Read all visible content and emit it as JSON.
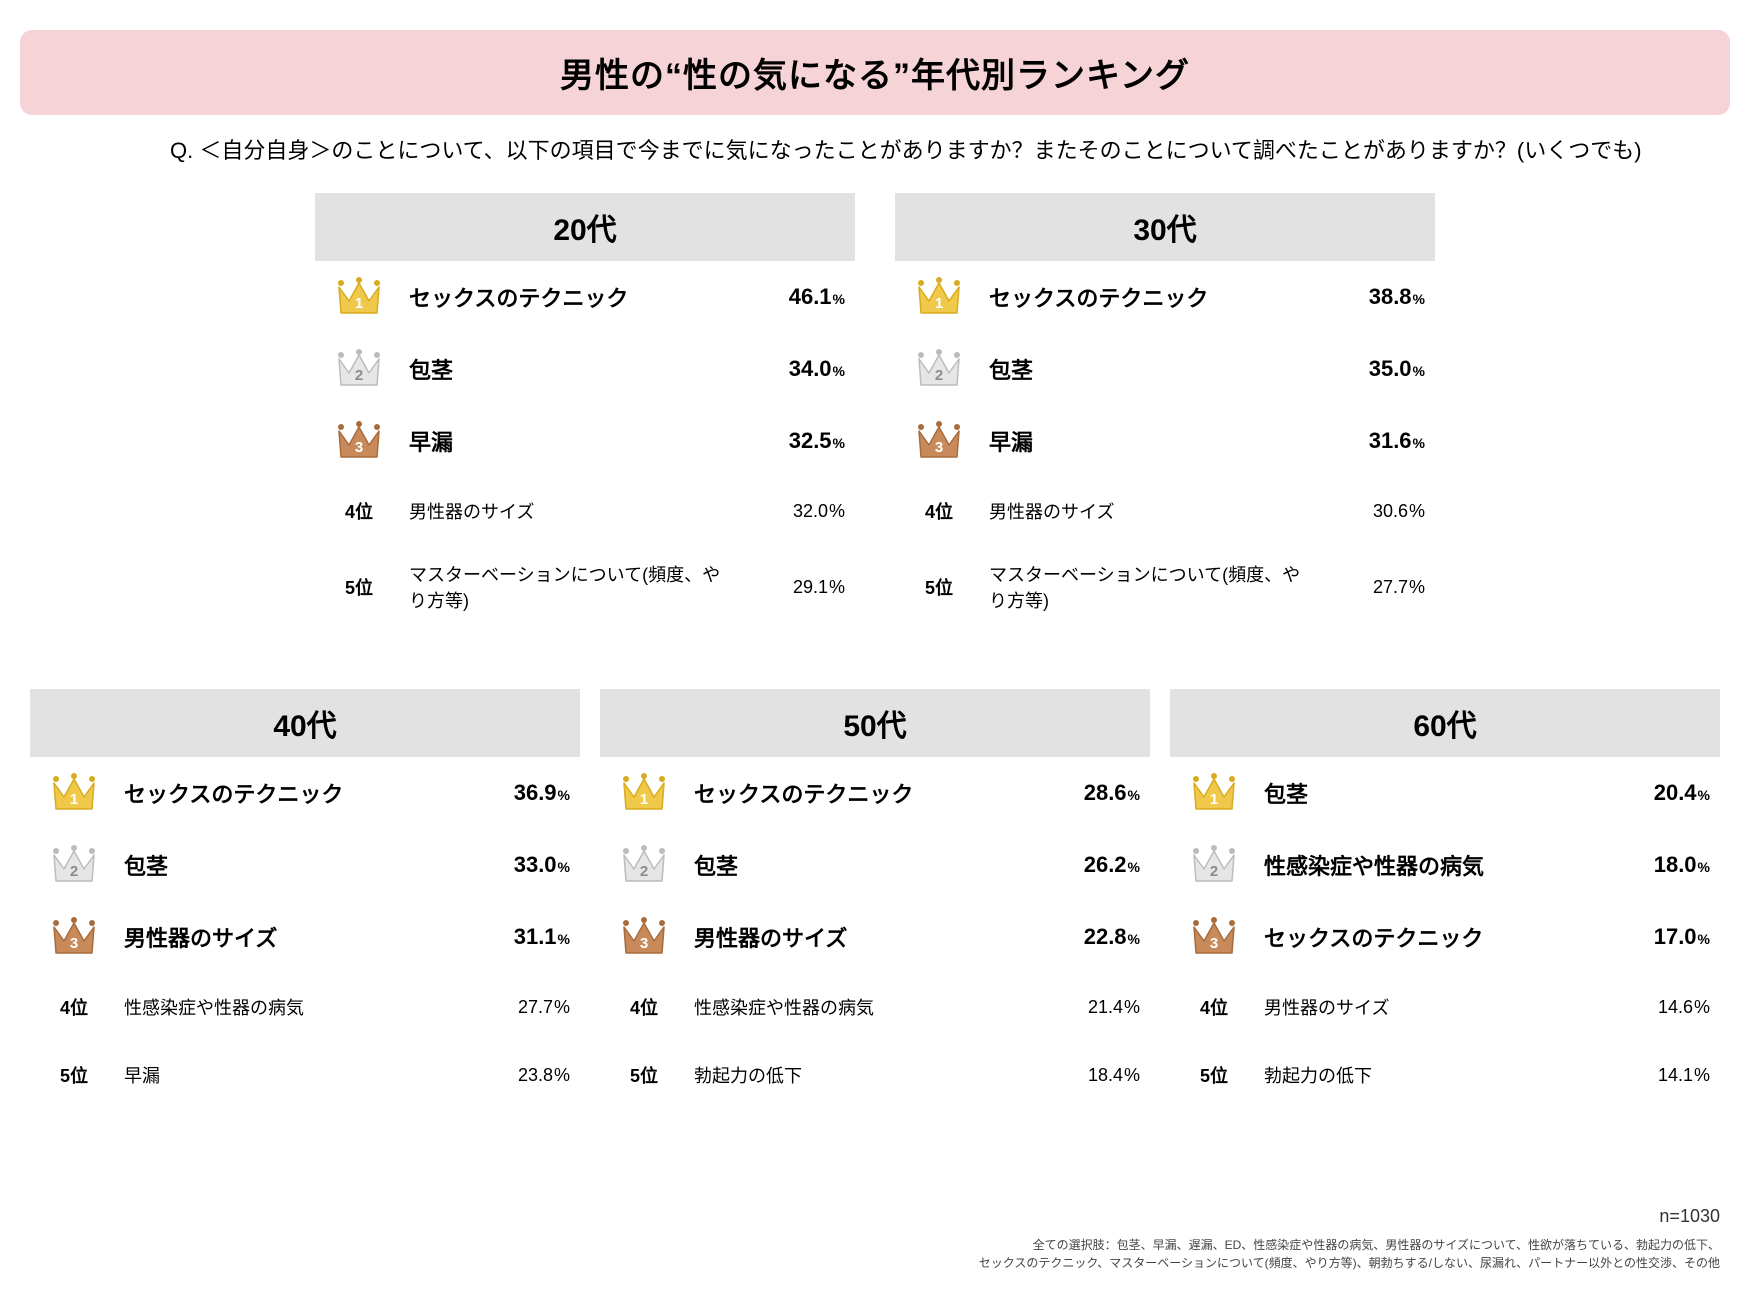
{
  "title": "男性の“性の気になる”年代別ランキング",
  "question": "Q.  ＜自分自身＞のことについて、以下の項目で今までに気になったことがありますか？またそのことについて調べたことがありますか？(いくつでも)",
  "crown_colors": {
    "gold": {
      "fill": "#f0c84a",
      "stroke": "#d9ab20",
      "text": "#ffffff"
    },
    "silver": {
      "fill": "#e6e6e6",
      "stroke": "#bcbcbc",
      "text": "#8c8c8c"
    },
    "bronze": {
      "fill": "#c88a5a",
      "stroke": "#a86c3c",
      "text": "#ffffff"
    }
  },
  "background_color": "#ffffff",
  "title_bar_color": "#f6d3d7",
  "panel_header_color": "#e2e2e2",
  "panels_top": [
    {
      "key": "20s",
      "header": "20代",
      "rows": [
        {
          "rank": 1,
          "crown": "gold",
          "label": "セックスのテクニック",
          "pct": "46.1"
        },
        {
          "rank": 2,
          "crown": "silver",
          "label": "包茎",
          "pct": "34.0"
        },
        {
          "rank": 3,
          "crown": "bronze",
          "label": "早漏",
          "pct": "32.5"
        },
        {
          "rank": 4,
          "crown": null,
          "label": "男性器のサイズ",
          "pct": "32.0",
          "rank_label": "4位"
        },
        {
          "rank": 5,
          "crown": null,
          "label": "マスターベーションについて(頻度、やり方等)",
          "pct": "29.1",
          "rank_label": "5位"
        }
      ]
    },
    {
      "key": "30s",
      "header": "30代",
      "rows": [
        {
          "rank": 1,
          "crown": "gold",
          "label": "セックスのテクニック",
          "pct": "38.8"
        },
        {
          "rank": 2,
          "crown": "silver",
          "label": "包茎",
          "pct": "35.0"
        },
        {
          "rank": 3,
          "crown": "bronze",
          "label": "早漏",
          "pct": "31.6"
        },
        {
          "rank": 4,
          "crown": null,
          "label": "男性器のサイズ",
          "pct": "30.6",
          "rank_label": "4位"
        },
        {
          "rank": 5,
          "crown": null,
          "label": "マスターベーションについて(頻度、やり方等)",
          "pct": "27.7",
          "rank_label": "5位"
        }
      ]
    }
  ],
  "panels_bottom": [
    {
      "key": "40s",
      "header": "40代",
      "rows": [
        {
          "rank": 1,
          "crown": "gold",
          "label": "セックスのテクニック",
          "pct": "36.9"
        },
        {
          "rank": 2,
          "crown": "silver",
          "label": "包茎",
          "pct": "33.0"
        },
        {
          "rank": 3,
          "crown": "bronze",
          "label": "男性器のサイズ",
          "pct": "31.1"
        },
        {
          "rank": 4,
          "crown": null,
          "label": "性感染症や性器の病気",
          "pct": "27.7",
          "rank_label": "4位"
        },
        {
          "rank": 5,
          "crown": null,
          "label": "早漏",
          "pct": "23.8",
          "rank_label": "5位"
        }
      ]
    },
    {
      "key": "50s",
      "header": "50代",
      "rows": [
        {
          "rank": 1,
          "crown": "gold",
          "label": "セックスのテクニック",
          "pct": "28.6"
        },
        {
          "rank": 2,
          "crown": "silver",
          "label": "包茎",
          "pct": "26.2"
        },
        {
          "rank": 3,
          "crown": "bronze",
          "label": "男性器のサイズ",
          "pct": "22.8"
        },
        {
          "rank": 4,
          "crown": null,
          "label": "性感染症や性器の病気",
          "pct": "21.4",
          "rank_label": "4位"
        },
        {
          "rank": 5,
          "crown": null,
          "label": "勃起力の低下",
          "pct": "18.4",
          "rank_label": "5位"
        }
      ]
    },
    {
      "key": "60s",
      "header": "60代",
      "rows": [
        {
          "rank": 1,
          "crown": "gold",
          "label": "包茎",
          "pct": "20.4"
        },
        {
          "rank": 2,
          "crown": "silver",
          "label": "性感染症や性器の病気",
          "pct": "18.0"
        },
        {
          "rank": 3,
          "crown": "bronze",
          "label": "セックスのテクニック",
          "pct": "17.0"
        },
        {
          "rank": 4,
          "crown": null,
          "label": "男性器のサイズ",
          "pct": "14.6",
          "rank_label": "4位"
        },
        {
          "rank": 5,
          "crown": null,
          "label": "勃起力の低下",
          "pct": "14.1",
          "rank_label": "5位"
        }
      ]
    }
  ],
  "footer": {
    "n": "n=1030",
    "note_line1": "全ての選択肢：包茎、早漏、遅漏、ED、性感染症や性器の病気、男性器のサイズについて、性欲が落ちている、勃起力の低下、",
    "note_line2": "セックスのテクニック、マスターベーションについて(頻度、やり方等)、朝勃ちする/しない、尿漏れ、パートナー以外との性交渉、その他"
  }
}
